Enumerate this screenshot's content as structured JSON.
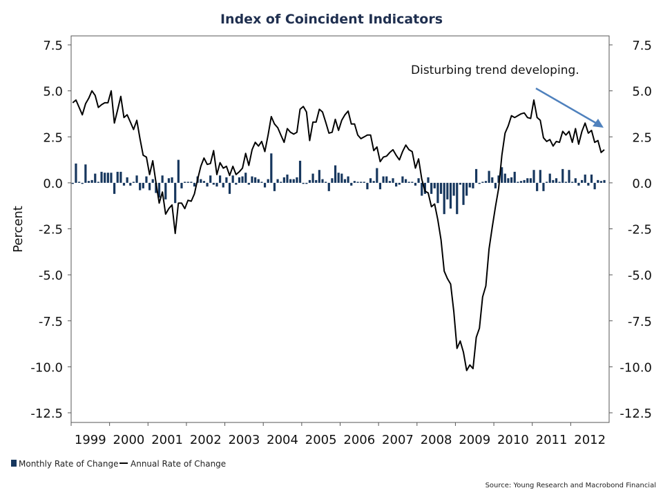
{
  "chart_data": {
    "type": "bar+line",
    "title": "Index of Coincident Indicators",
    "ylabel": "Percent",
    "ylim": [
      -12.5,
      7.5
    ],
    "yticks": [
      "7.5",
      "5.0",
      "2.5",
      "0.0",
      "-2.5",
      "-5.0",
      "-7.5",
      "-10.0",
      "-12.5"
    ],
    "ytick_values": [
      7.5,
      5.0,
      2.5,
      0.0,
      -2.5,
      -5.0,
      -7.5,
      -10.0,
      -12.5
    ],
    "xlim": [
      "1999-01",
      "2012-12"
    ],
    "xticks": [
      "1999",
      "2000",
      "2001",
      "2002",
      "2003",
      "2004",
      "2005",
      "2006",
      "2007",
      "2008",
      "2009",
      "2010",
      "2011",
      "2012"
    ],
    "frequency": "monthly",
    "start": "1999-01",
    "grid": false,
    "legend_placement": "bottom-left",
    "series": [
      {
        "name": "Monthly Rate of Change",
        "type": "bar",
        "color": "#17375e",
        "values": [
          -0.05,
          1.05,
          0,
          -0.05,
          1.0,
          0.1,
          0.15,
          0.5,
          0,
          0.6,
          0.55,
          0.55,
          0.55,
          -0.6,
          0.6,
          0.6,
          -0.15,
          0.3,
          -0.15,
          0.05,
          0.4,
          -0.4,
          -0.3,
          0.35,
          -0.4,
          0.2,
          -0.55,
          -0.8,
          0.4,
          -0.9,
          0.25,
          0.3,
          -1.1,
          1.25,
          -0.3,
          0.05,
          0.05,
          0.05,
          -0.2,
          0.35,
          0.2,
          0.1,
          -0.2,
          0.4,
          -0.1,
          -0.2,
          0.4,
          -0.25,
          0.3,
          -0.6,
          0.4,
          -0.1,
          0.3,
          0.35,
          0.55,
          -0.1,
          0.35,
          0.3,
          0.2,
          0,
          -0.25,
          0.2,
          1.6,
          -0.45,
          0.2,
          0,
          0.3,
          0.45,
          0.2,
          0.2,
          0.3,
          1.2,
          -0.05,
          -0.05,
          0.15,
          0.5,
          0.15,
          0.7,
          0.2,
          0,
          -0.45,
          0.25,
          0.95,
          0.55,
          0.5,
          0.2,
          0.35,
          -0.15,
          0.1,
          0,
          0.05,
          0.05,
          -0.35,
          0.25,
          0.1,
          0.8,
          -0.35,
          0.35,
          0.35,
          0.1,
          0.25,
          -0.2,
          -0.1,
          0.35,
          0.2,
          0,
          0.05,
          -0.15,
          0.25,
          -0.7,
          -0.6,
          0.3,
          -0.6,
          -0.3,
          -1.1,
          -0.6,
          -1.7,
          -0.9,
          -1.4,
          -0.7,
          -1.7,
          -0.1,
          -1.2,
          -0.7,
          -0.25,
          -0.3,
          0.75,
          -0.05,
          0,
          0.1,
          0.65,
          0.3,
          -0.3,
          0.4,
          0.85,
          0.5,
          0.25,
          0.3,
          0.6,
          0,
          0.1,
          0.15,
          0.25,
          0.25,
          0.7,
          -0.45,
          0.7,
          -0.45,
          0,
          0.5,
          0.15,
          0.25,
          0,
          0.75,
          0,
          0.7,
          0,
          0.25,
          -0.15,
          0.15,
          0.45,
          -0.15,
          0.45,
          -0.35,
          0.15,
          0.1,
          0.15
        ]
      },
      {
        "name": "Annual Rate of Change",
        "type": "line",
        "color": "#000000",
        "values": [
          4.35,
          4.5,
          4.1,
          3.7,
          4.3,
          4.6,
          5.0,
          4.75,
          4.1,
          4.25,
          4.35,
          4.35,
          5.0,
          3.25,
          3.95,
          4.7,
          3.55,
          3.7,
          3.3,
          2.9,
          3.4,
          2.4,
          1.5,
          1.4,
          0.45,
          1.2,
          0.0,
          -1.1,
          -0.5,
          -1.7,
          -1.4,
          -1.2,
          -2.75,
          -1.1,
          -1.1,
          -1.4,
          -0.95,
          -1.0,
          -0.6,
          0.2,
          0.9,
          1.35,
          1.0,
          1.05,
          1.75,
          0.45,
          1.1,
          0.8,
          0.9,
          0.4,
          0.9,
          0.45,
          0.6,
          0.8,
          1.6,
          0.95,
          1.8,
          2.2,
          2.0,
          2.25,
          1.7,
          2.6,
          3.6,
          3.2,
          3.0,
          2.6,
          2.2,
          2.95,
          2.75,
          2.65,
          2.75,
          4.0,
          4.15,
          3.85,
          2.3,
          3.3,
          3.3,
          4.0,
          3.85,
          3.3,
          2.7,
          2.75,
          3.45,
          2.85,
          3.4,
          3.7,
          3.9,
          3.2,
          3.2,
          2.6,
          2.4,
          2.5,
          2.6,
          2.6,
          1.75,
          1.95,
          1.15,
          1.4,
          1.45,
          1.65,
          1.8,
          1.5,
          1.25,
          1.7,
          2.05,
          1.8,
          1.7,
          0.8,
          1.3,
          0.2,
          -0.45,
          -0.55,
          -1.3,
          -1.15,
          -2.0,
          -3.1,
          -4.8,
          -5.2,
          -5.5,
          -7.0,
          -9.0,
          -8.6,
          -9.2,
          -10.2,
          -9.9,
          -10.1,
          -8.4,
          -7.9,
          -6.2,
          -5.6,
          -3.6,
          -2.4,
          -1.3,
          -0.3,
          1.5,
          2.7,
          3.1,
          3.65,
          3.55,
          3.65,
          3.75,
          3.8,
          3.55,
          3.5,
          4.5,
          3.55,
          3.4,
          2.45,
          2.25,
          2.35,
          2.0,
          2.25,
          2.2,
          2.8,
          2.6,
          2.8,
          2.2,
          2.95,
          2.1,
          2.8,
          3.25,
          2.7,
          2.85,
          2.2,
          2.3,
          1.65,
          1.8
        ]
      }
    ],
    "annotation": {
      "text": "Disturbing trend developing.",
      "arrow_color": "#4f81bd"
    },
    "source": "Source: Young Research and Macrobond Financial"
  }
}
